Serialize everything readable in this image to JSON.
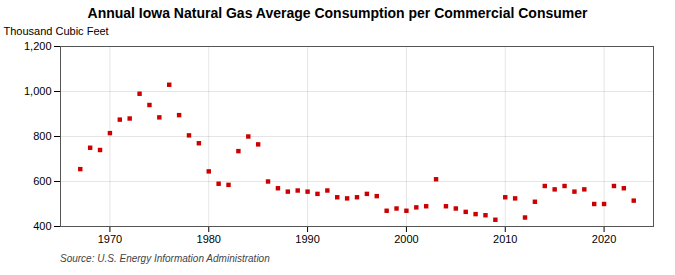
{
  "chart_data": {
    "type": "scatter",
    "title": "Annual Iowa Natural Gas Average Consumption per Commercial Consumer",
    "ylabel": "Thousand Cubic Feet",
    "annotations": [
      "Source: U.S. Energy Information Administration"
    ],
    "x": [
      1967,
      1968,
      1969,
      1970,
      1971,
      1972,
      1973,
      1974,
      1975,
      1976,
      1977,
      1978,
      1979,
      1980,
      1981,
      1982,
      1983,
      1984,
      1985,
      1986,
      1987,
      1988,
      1989,
      1990,
      1991,
      1992,
      1993,
      1994,
      1995,
      1996,
      1997,
      1998,
      1999,
      2000,
      2001,
      2002,
      2003,
      2004,
      2005,
      2006,
      2007,
      2008,
      2009,
      2010,
      2011,
      2012,
      2013,
      2014,
      2015,
      2016,
      2017,
      2018,
      2019,
      2020,
      2021,
      2022,
      2023
    ],
    "values": [
      655,
      750,
      740,
      815,
      875,
      880,
      990,
      940,
      885,
      1030,
      895,
      805,
      770,
      645,
      590,
      585,
      735,
      800,
      765,
      600,
      570,
      555,
      560,
      555,
      545,
      560,
      530,
      525,
      530,
      545,
      535,
      470,
      480,
      470,
      485,
      490,
      610,
      490,
      480,
      465,
      455,
      450,
      430,
      530,
      525,
      440,
      510,
      580,
      565,
      580,
      555,
      565,
      500,
      500,
      580,
      570,
      515
    ],
    "color": "#cc0000",
    "marker": "square",
    "xlim": [
      1965,
      2025
    ],
    "xticks": [
      1970,
      1980,
      1990,
      2000,
      2010,
      2020
    ],
    "ylim": [
      400,
      1200
    ],
    "yticks": [
      400,
      600,
      800,
      {
        "value": 1000,
        "label": "1,000"
      },
      {
        "value": 1200,
        "label": "1,200"
      }
    ],
    "grid": true
  }
}
